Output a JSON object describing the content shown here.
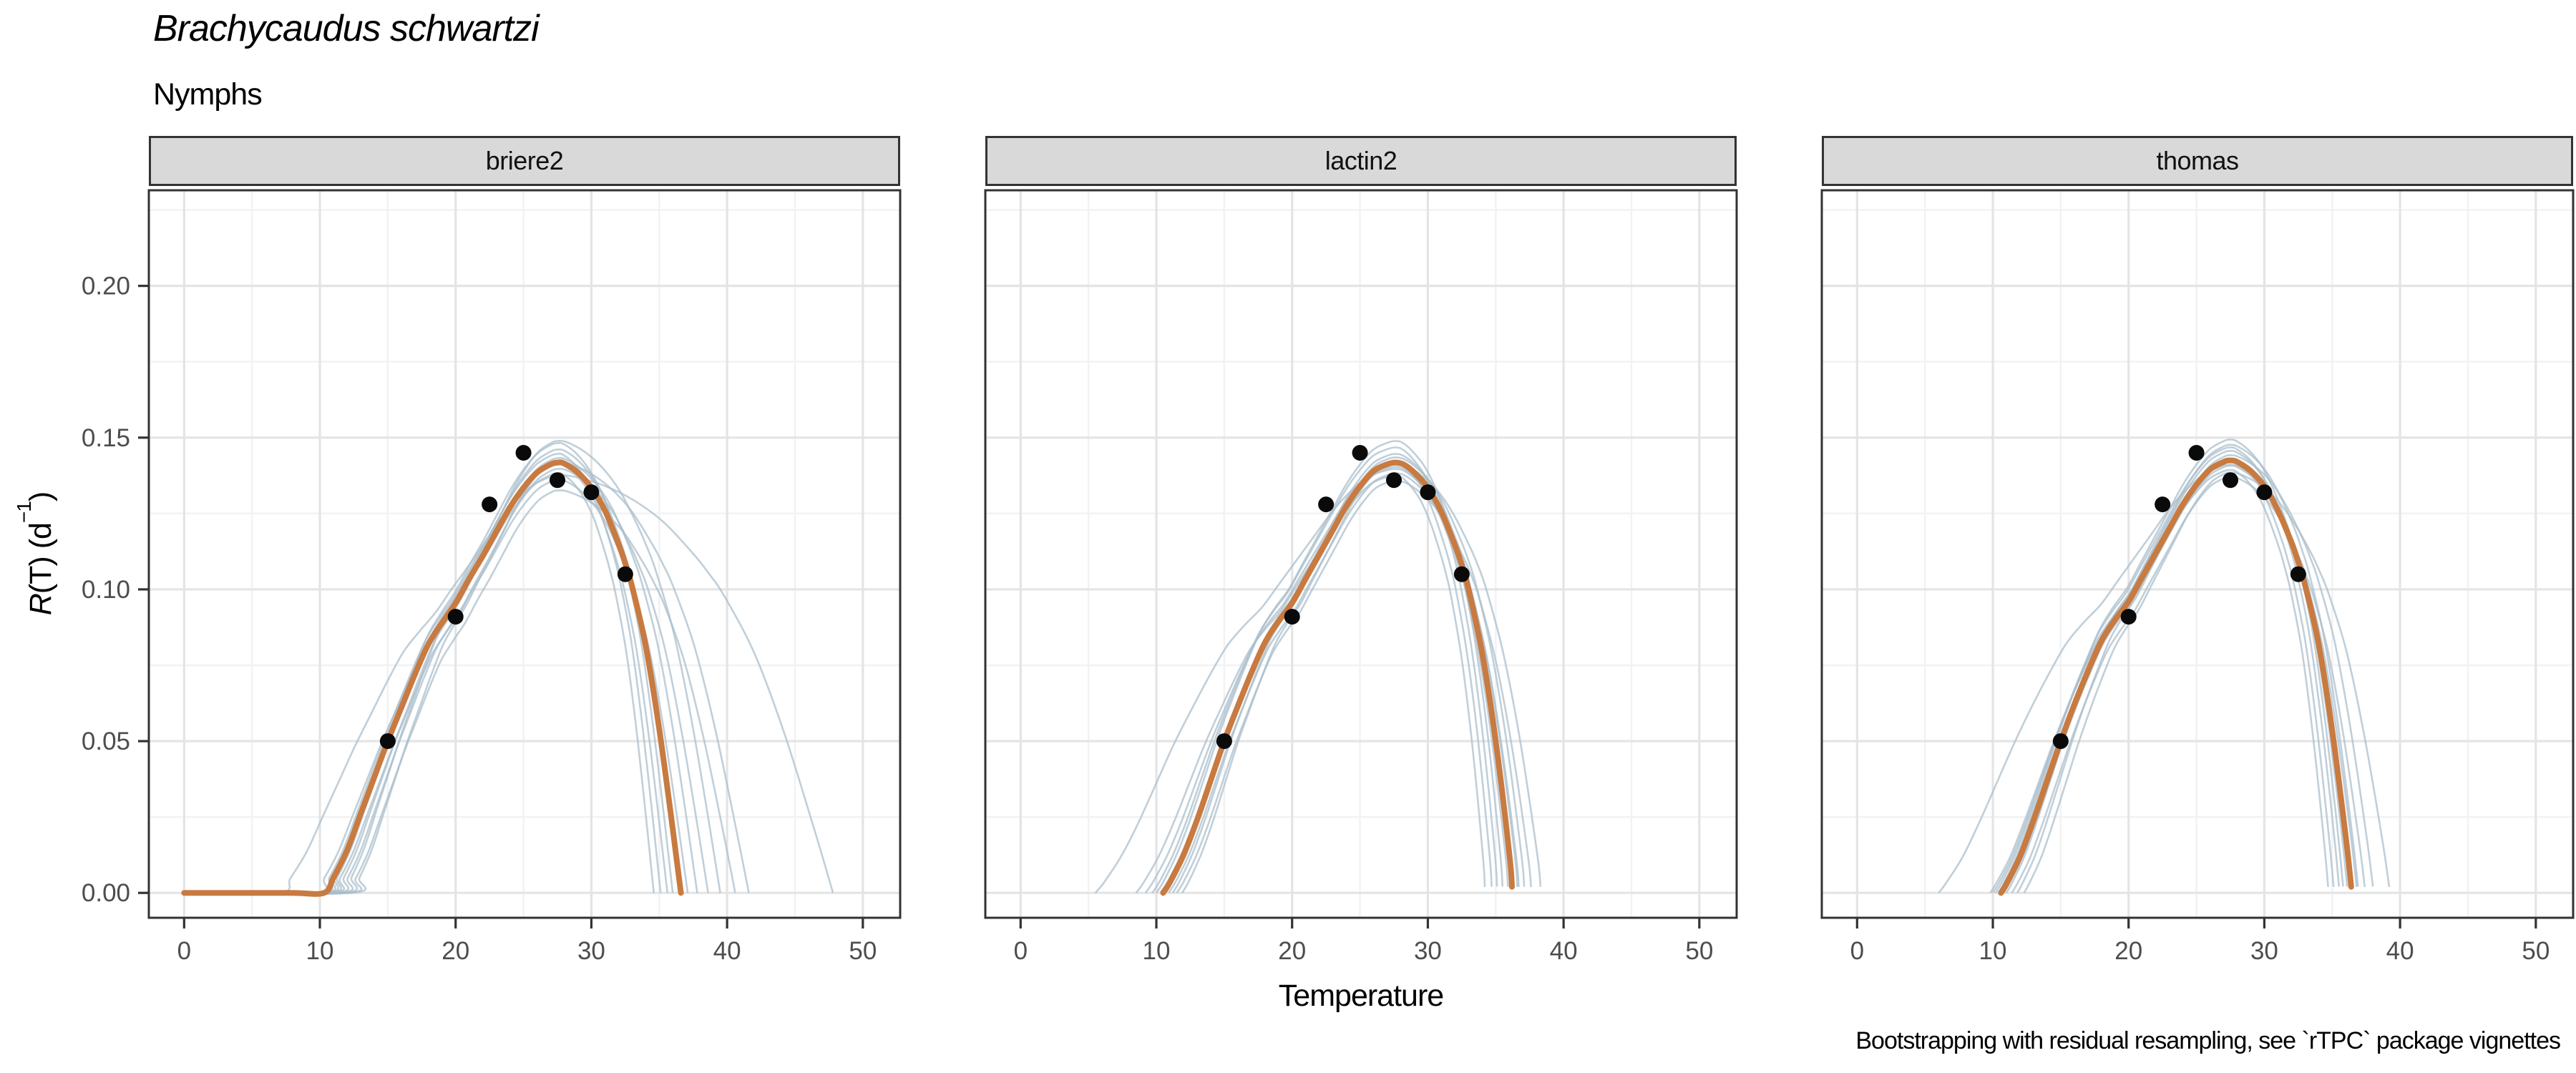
{
  "chart_data": {
    "type": "line",
    "title": "Brachycaudus schwartzi",
    "subtitle": "Nymphs",
    "caption": "Bootstrapping with residual resampling, see `rTPC` package vignettes",
    "xlabel": "Temperature",
    "ylabel": {
      "lead_italic": "R",
      "mid": "(T) (d",
      "sup": "−1",
      "tail": ")"
    },
    "x_ticks": [
      0,
      10,
      20,
      30,
      40,
      50
    ],
    "x_minor_ticks": [
      5,
      15,
      25,
      35,
      45
    ],
    "y_ticks": [
      {
        "label": "0.00",
        "value": 0
      },
      {
        "label": "0.05",
        "value": 0.05
      },
      {
        "label": "0.10",
        "value": 0.1
      },
      {
        "label": "0.15",
        "value": 0.15
      },
      {
        "label": "0.20",
        "value": 0.2
      }
    ],
    "y_minor_ticks": [
      0.025,
      0.075,
      0.125,
      0.175,
      0.225
    ],
    "x_domain": [
      -2.6,
      52.75
    ],
    "y_domain": [
      -0.0082,
      0.2315
    ],
    "points": {
      "x": [
        15,
        20,
        22.5,
        25,
        27.5,
        30,
        32.5
      ],
      "y": [
        0.05,
        0.091,
        0.128,
        0.145,
        0.136,
        0.132,
        0.105
      ]
    },
    "facets": [
      {
        "label": "briere2",
        "flat_left": true,
        "rise_start": 10.3,
        "peak_x": 27.5,
        "end_x": 36.6,
        "fit": [
          [
            0,
            0
          ],
          [
            4,
            0
          ],
          [
            8,
            0
          ],
          [
            10.3,
            0
          ],
          [
            11,
            0.005
          ],
          [
            12,
            0.014
          ],
          [
            13,
            0.026
          ],
          [
            14,
            0.038
          ],
          [
            15,
            0.05
          ],
          [
            16,
            0.061
          ],
          [
            17,
            0.072
          ],
          [
            18,
            0.082
          ],
          [
            19,
            0.089
          ],
          [
            20,
            0.0955
          ],
          [
            21,
            0.1035
          ],
          [
            22,
            0.111
          ],
          [
            23,
            0.119
          ],
          [
            24,
            0.127
          ],
          [
            25,
            0.1335
          ],
          [
            26,
            0.1385
          ],
          [
            27,
            0.1412
          ],
          [
            27.5,
            0.1418
          ],
          [
            28,
            0.1415
          ],
          [
            29,
            0.1385
          ],
          [
            30,
            0.1335
          ],
          [
            31,
            0.126
          ],
          [
            32,
            0.115
          ],
          [
            32.5,
            0.1085
          ],
          [
            33,
            0.101
          ],
          [
            34,
            0.0815
          ],
          [
            35,
            0.054
          ],
          [
            36,
            0.021
          ],
          [
            36.6,
            0
          ]
        ],
        "bootstraps": [
          [
            7.0,
            47.8,
            0.97
          ],
          [
            9.6,
            34.6,
            0.975
          ],
          [
            10.0,
            35.1,
            1.02
          ],
          [
            10.2,
            35.6,
            0.995
          ],
          [
            10.4,
            36.0,
            1.045
          ],
          [
            10.6,
            36.5,
            1.03
          ],
          [
            10.8,
            37.1,
            0.96
          ],
          [
            11.1,
            37.8,
            1.01
          ],
          [
            11.4,
            38.6,
            0.985
          ],
          [
            11.7,
            39.5,
            1.05
          ],
          [
            12.0,
            40.6,
            0.935
          ],
          [
            12.3,
            41.6,
            1.0
          ]
        ]
      },
      {
        "label": "lactin2",
        "flat_left": false,
        "rise_start": 10.5,
        "peak_x": 27.6,
        "end_x": 36.2,
        "fit": [
          [
            10.5,
            0
          ],
          [
            11,
            0.0035
          ],
          [
            12,
            0.0125
          ],
          [
            13,
            0.024
          ],
          [
            14,
            0.037
          ],
          [
            15,
            0.05
          ],
          [
            16,
            0.0615
          ],
          [
            17,
            0.0725
          ],
          [
            18,
            0.0825
          ],
          [
            19,
            0.0895
          ],
          [
            20,
            0.0955
          ],
          [
            21,
            0.1035
          ],
          [
            22,
            0.1115
          ],
          [
            23,
            0.1195
          ],
          [
            24,
            0.1275
          ],
          [
            25,
            0.134
          ],
          [
            26,
            0.139
          ],
          [
            27,
            0.1412
          ],
          [
            27.6,
            0.1418
          ],
          [
            28.2,
            0.1412
          ],
          [
            29,
            0.1385
          ],
          [
            30,
            0.1335
          ],
          [
            31,
            0.1255
          ],
          [
            32,
            0.1145
          ],
          [
            32.5,
            0.108
          ],
          [
            33,
            0.1
          ],
          [
            34,
            0.079
          ],
          [
            35,
            0.05
          ],
          [
            36,
            0.013
          ],
          [
            36.2,
            0.002
          ]
        ],
        "bootstraps": [
          [
            5.5,
            36.6,
            0.985
          ],
          [
            8.5,
            34.2,
            0.97
          ],
          [
            9.2,
            34.7,
            1.0
          ],
          [
            9.7,
            35.1,
            1.035
          ],
          [
            10.0,
            35.5,
            1.05
          ],
          [
            10.3,
            35.9,
            0.99
          ],
          [
            10.6,
            36.3,
            1.02
          ],
          [
            10.9,
            36.7,
            0.975
          ],
          [
            11.2,
            37.1,
            1.012
          ],
          [
            11.5,
            37.6,
            0.958
          ],
          [
            11.9,
            38.3,
            0.998
          ]
        ]
      },
      {
        "label": "thomas",
        "flat_left": false,
        "rise_start": 10.6,
        "peak_x": 27.5,
        "end_x": 36.4,
        "fit": [
          [
            10.6,
            0
          ],
          [
            11,
            0.003
          ],
          [
            12,
            0.012
          ],
          [
            13,
            0.024
          ],
          [
            14,
            0.037
          ],
          [
            15,
            0.05
          ],
          [
            16,
            0.062
          ],
          [
            17,
            0.073
          ],
          [
            18,
            0.083
          ],
          [
            19,
            0.09
          ],
          [
            20,
            0.096
          ],
          [
            21,
            0.104
          ],
          [
            22,
            0.112
          ],
          [
            23,
            0.12
          ],
          [
            24,
            0.128
          ],
          [
            25,
            0.1345
          ],
          [
            26,
            0.1395
          ],
          [
            27,
            0.142
          ],
          [
            27.5,
            0.1425
          ],
          [
            28,
            0.142
          ],
          [
            29,
            0.139
          ],
          [
            30,
            0.134
          ],
          [
            31,
            0.126
          ],
          [
            32,
            0.1155
          ],
          [
            32.5,
            0.109
          ],
          [
            33,
            0.1015
          ],
          [
            34,
            0.082
          ],
          [
            35,
            0.0535
          ],
          [
            36,
            0.0185
          ],
          [
            36.4,
            0.002
          ]
        ],
        "bootstraps": [
          [
            6.0,
            36.8,
            0.99
          ],
          [
            9.8,
            34.7,
            0.978
          ],
          [
            10.0,
            35.1,
            1.0
          ],
          [
            10.2,
            35.5,
            1.03
          ],
          [
            10.4,
            35.8,
            1.048
          ],
          [
            10.6,
            36.1,
            1.022
          ],
          [
            10.8,
            36.5,
            0.988
          ],
          [
            11.0,
            36.9,
            1.036
          ],
          [
            11.4,
            37.4,
            0.962
          ],
          [
            11.8,
            38.0,
            1.012
          ],
          [
            12.3,
            39.2,
            0.972
          ]
        ]
      }
    ],
    "style": {
      "fit_color": "#C87A40",
      "bootstrap_color": "rgba(168,189,202,0.72)",
      "point_color": "#0a0a0a",
      "strip_bg": "#D9D9D9",
      "grid_major": "#E4E4E4",
      "grid_minor": "#F2F2F2",
      "axis_text_color": "#4d4d4d",
      "border_color": "#333333"
    }
  }
}
